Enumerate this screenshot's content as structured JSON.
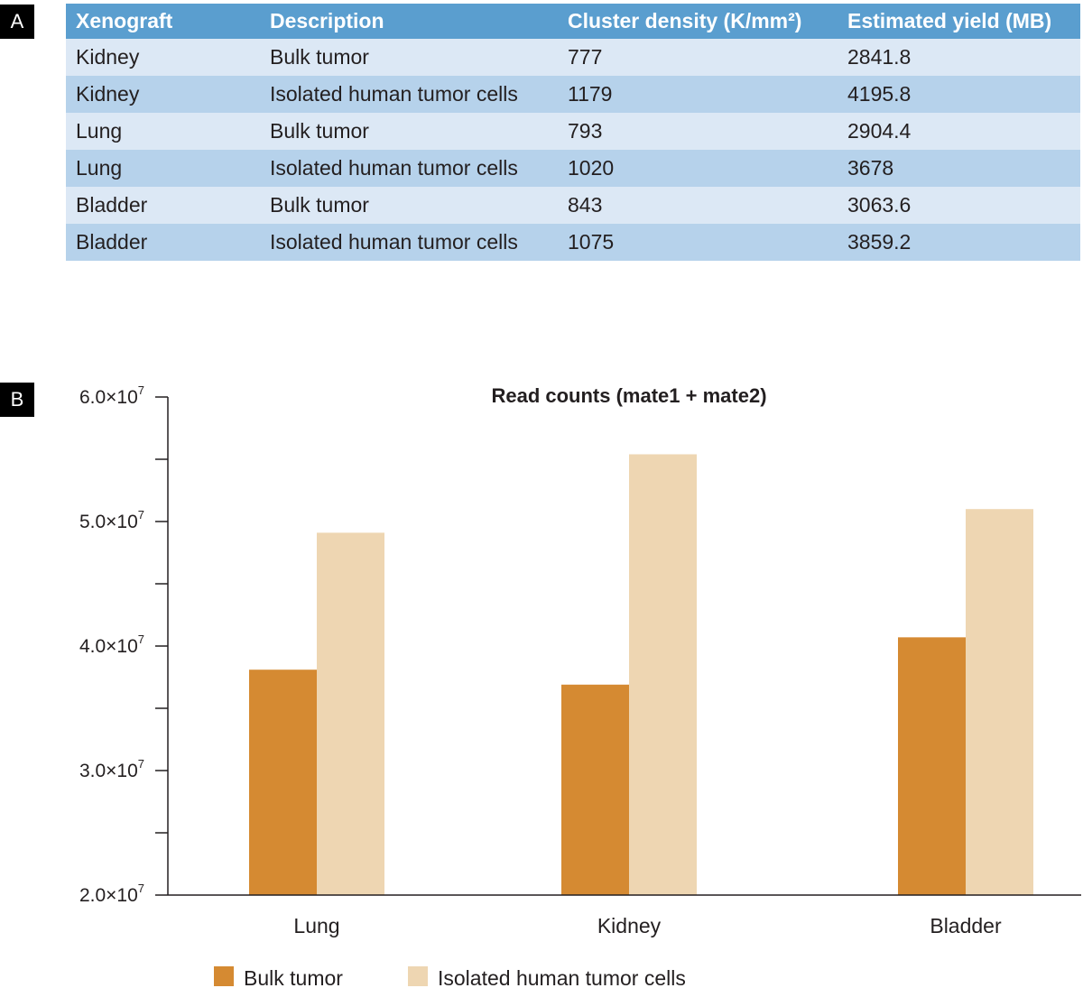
{
  "panels": {
    "a": "A",
    "b": "B"
  },
  "table": {
    "headers": [
      "Xenograft",
      "Description",
      "Cluster density (K/mm²)",
      "Estimated yield (MB)"
    ],
    "rows": [
      [
        "Kidney",
        "Bulk tumor",
        "777",
        "2841.8"
      ],
      [
        "Kidney",
        "Isolated human tumor cells",
        "1179",
        "4195.8"
      ],
      [
        "Lung",
        "Bulk tumor",
        "793",
        "2904.4"
      ],
      [
        "Lung",
        "Isolated human tumor cells",
        "1020",
        "3678"
      ],
      [
        "Bladder",
        "Bulk tumor",
        "843",
        "3063.6"
      ],
      [
        "Bladder",
        "Isolated human tumor cells",
        "1075",
        "3859.2"
      ]
    ]
  },
  "colors": {
    "bulk": "#d58a32",
    "isolated": "#eed6b2",
    "header": "#5a9ecf",
    "row_light": "#dce8f5",
    "row_dark": "#b6d2eb"
  },
  "chart_data": {
    "type": "bar",
    "title": "Read counts (mate1 + mate2)",
    "categories": [
      "Lung",
      "Kidney",
      "Bladder"
    ],
    "series": [
      {
        "name": "Bulk tumor",
        "values": [
          38100000,
          36900000,
          40700000
        ]
      },
      {
        "name": "Isolated human tumor cells",
        "values": [
          49100000,
          55400000,
          51000000
        ]
      }
    ],
    "ylim": [
      20000000,
      60000000
    ],
    "yticks": [
      {
        "mantissa": "2.0×10",
        "exp": "7"
      },
      {
        "mantissa": "3.0×10",
        "exp": "7"
      },
      {
        "mantissa": "4.0×10",
        "exp": "7"
      },
      {
        "mantissa": "5.0×10",
        "exp": "7"
      },
      {
        "mantissa": "6.0×10",
        "exp": "7"
      }
    ],
    "xlabel": "",
    "ylabel": "",
    "legend": [
      "Bulk tumor",
      "Isolated human tumor cells"
    ],
    "legend_position": "bottom"
  }
}
